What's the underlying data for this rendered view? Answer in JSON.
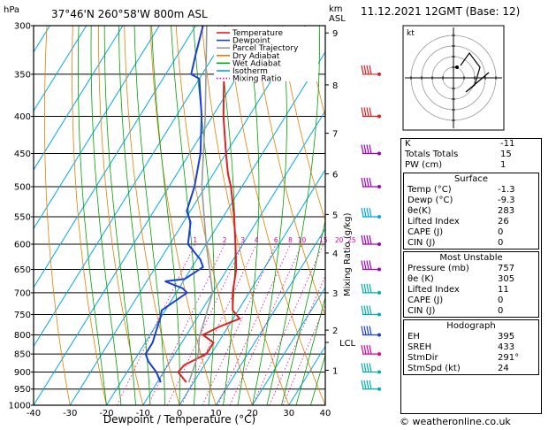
{
  "header": {
    "location": "37°46'N  260°58'W  800m  ASL",
    "datetime": "11.12.2021  12GMT  (Base: 12)",
    "hpa_label": "hPa",
    "km_label": "km",
    "asl_label": "ASL",
    "xlabel": "Dewpoint / Temperature (°C)",
    "right_axis_label": "Mixing Ratio (g/kg)",
    "lcl_label": "LCL",
    "copyright": "© weatheronline.co.uk"
  },
  "legend": [
    {
      "name": "Temperature",
      "color": "#e02020",
      "style": "solid"
    },
    {
      "name": "Dewpoint",
      "color": "#1a3fd6",
      "style": "solid"
    },
    {
      "name": "Parcel Trajectory",
      "color": "#999999",
      "style": "solid"
    },
    {
      "name": "Dry Adiabat",
      "color": "#e08000",
      "style": "solid"
    },
    {
      "name": "Wet Adiabat",
      "color": "#00a000",
      "style": "solid"
    },
    {
      "name": "Isotherm",
      "color": "#00a8e8",
      "style": "solid"
    },
    {
      "name": "Mixing Ratio",
      "color": "#e000a0",
      "style": "dotted"
    }
  ],
  "chart_data": {
    "type": "line",
    "title": "37°46'N  260°58'W  800m  ASL",
    "xlabel": "Dewpoint / Temperature (°C)",
    "ylabel": "hPa",
    "xlim": [
      -40,
      40
    ],
    "ylim": [
      1000,
      300
    ],
    "skew": true,
    "x_ticks": [
      -40,
      -30,
      -20,
      -10,
      0,
      10,
      20,
      30,
      40
    ],
    "pressure_levels": [
      300,
      350,
      400,
      450,
      500,
      550,
      600,
      650,
      700,
      750,
      800,
      850,
      900,
      950,
      1000
    ],
    "km_ticks": [
      {
        "label": "9",
        "p": 307
      },
      {
        "label": "8",
        "p": 362
      },
      {
        "label": "7",
        "p": 422
      },
      {
        "label": "6",
        "p": 480
      },
      {
        "label": "5",
        "p": 546
      },
      {
        "label": "4",
        "p": 617
      },
      {
        "label": "3",
        "p": 700
      },
      {
        "label": "2",
        "p": 788
      },
      {
        "label": "1",
        "p": 895
      }
    ],
    "lcl_pressure": 808,
    "mixing_ratio_lines": [
      "1",
      "2",
      "3",
      "4",
      "6",
      "8",
      "10",
      "15",
      "20",
      "25"
    ],
    "mixing_ratio_values": [
      1,
      2,
      3,
      4,
      6,
      8,
      10,
      15,
      20,
      25
    ],
    "series": [
      {
        "name": "Temperature",
        "color": "#e02020",
        "points": [
          [
            300,
            -52
          ],
          [
            330,
            -47
          ],
          [
            350,
            -44
          ],
          [
            400,
            -37
          ],
          [
            450,
            -30
          ],
          [
            480,
            -26
          ],
          [
            500,
            -23
          ],
          [
            550,
            -17
          ],
          [
            600,
            -12
          ],
          [
            650,
            -7.5
          ],
          [
            700,
            -4.5
          ],
          [
            740,
            -1.5
          ],
          [
            760,
            1.8
          ],
          [
            780,
            -2.5
          ],
          [
            800,
            -5.5
          ],
          [
            820,
            -1.3
          ],
          [
            850,
            -1.3
          ],
          [
            880,
            -5.5
          ],
          [
            900,
            -6
          ],
          [
            930,
            -2
          ]
        ]
      },
      {
        "name": "Dewpoint",
        "color": "#1a3fd6",
        "points": [
          [
            300,
            -58
          ],
          [
            330,
            -55
          ],
          [
            350,
            -53
          ],
          [
            355,
            -50
          ],
          [
            400,
            -43
          ],
          [
            450,
            -37
          ],
          [
            500,
            -33
          ],
          [
            540,
            -31
          ],
          [
            560,
            -28
          ],
          [
            600,
            -25
          ],
          [
            630,
            -19
          ],
          [
            645,
            -17
          ],
          [
            670,
            -20
          ],
          [
            675,
            -25
          ],
          [
            690,
            -19
          ],
          [
            700,
            -17
          ],
          [
            740,
            -21
          ],
          [
            760,
            -20
          ],
          [
            790,
            -19
          ],
          [
            820,
            -18
          ],
          [
            850,
            -18
          ],
          [
            870,
            -16
          ],
          [
            900,
            -12
          ],
          [
            930,
            -9
          ]
        ]
      },
      {
        "name": "Parcel Trajectory",
        "color": "#999999",
        "points": [
          [
            300,
            -57
          ],
          [
            400,
            -42
          ],
          [
            500,
            -31
          ],
          [
            600,
            -20
          ],
          [
            700,
            -10
          ],
          [
            808,
            -6
          ],
          [
            850,
            -3.5
          ],
          [
            930,
            -1.3
          ]
        ]
      }
    ]
  },
  "hodograph": {
    "label": "kt",
    "rings": [
      10,
      20,
      30,
      40
    ]
  },
  "indices": {
    "k": {
      "label": "K",
      "value": "-11"
    },
    "tt": {
      "label": "Totals Totals",
      "value": "15"
    },
    "pw": {
      "label": "PW (cm)",
      "value": "1"
    },
    "surface": {
      "title": "Surface",
      "rows": [
        {
          "label": "Temp (°C)",
          "value": "-1.3"
        },
        {
          "label": "Dewp (°C)",
          "value": "-9.3"
        },
        {
          "label": "θe(K)",
          "value": "283"
        },
        {
          "label": "Lifted Index",
          "value": "26"
        },
        {
          "label": "CAPE (J)",
          "value": "0"
        },
        {
          "label": "CIN (J)",
          "value": "0"
        }
      ]
    },
    "unstable": {
      "title": "Most Unstable",
      "rows": [
        {
          "label": "Pressure (mb)",
          "value": "757"
        },
        {
          "label": "θe (K)",
          "value": "305"
        },
        {
          "label": "Lifted Index",
          "value": "11"
        },
        {
          "label": "CAPE (J)",
          "value": "0"
        },
        {
          "label": "CIN (J)",
          "value": "0"
        }
      ]
    },
    "hodo": {
      "title": "Hodograph",
      "rows": [
        {
          "label": "EH",
          "value": "395"
        },
        {
          "label": "SREH",
          "value": "433"
        },
        {
          "label": "StmDir",
          "value": "291°"
        },
        {
          "label": "StmSpd (kt)",
          "value": "24"
        }
      ]
    }
  }
}
